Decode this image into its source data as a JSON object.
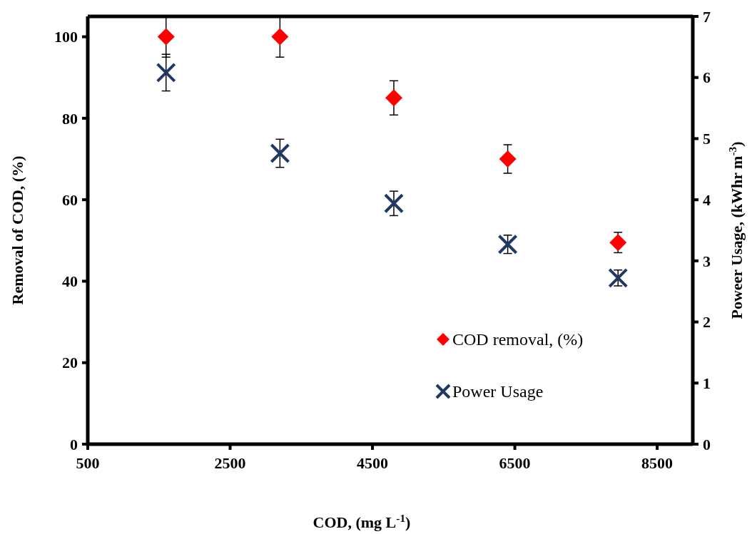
{
  "chart_data": {
    "type": "scatter",
    "xlabel": "COD, (mg L$^{-1}$)",
    "ylabel": "Removal of COD, (%)",
    "y2label": "Poweer Usage, (kWhr m$^{-3}$)",
    "x": [
      1600,
      3200,
      4800,
      6400,
      7950
    ],
    "series": [
      {
        "name": "COD removal, (%)",
        "color": "#ff0000",
        "marker": "diamond",
        "values": [
          100,
          100,
          85,
          70,
          49.5
        ],
        "errors": [
          5,
          5,
          4.2,
          3.5,
          2.5
        ]
      },
      {
        "name": "Power Usage",
        "color": "#1f3864",
        "marker": "cross",
        "axis": "y2",
        "values": [
          6.08,
          4.76,
          3.94,
          3.27,
          2.72
        ],
        "errors": [
          0.3,
          0.23,
          0.2,
          0.15,
          0.13
        ]
      }
    ],
    "xlim": [
      500,
      9000
    ],
    "xticks": [
      500,
      2500,
      4500,
      6500,
      8500
    ],
    "ylim": [
      0,
      105
    ],
    "yticks": [
      0,
      20,
      40,
      60,
      80,
      100
    ],
    "y2lim": [
      0,
      7
    ],
    "y2ticks": [
      0,
      1,
      2,
      3,
      4,
      5,
      6,
      7
    ],
    "legend": "bottom right",
    "grid": false
  }
}
